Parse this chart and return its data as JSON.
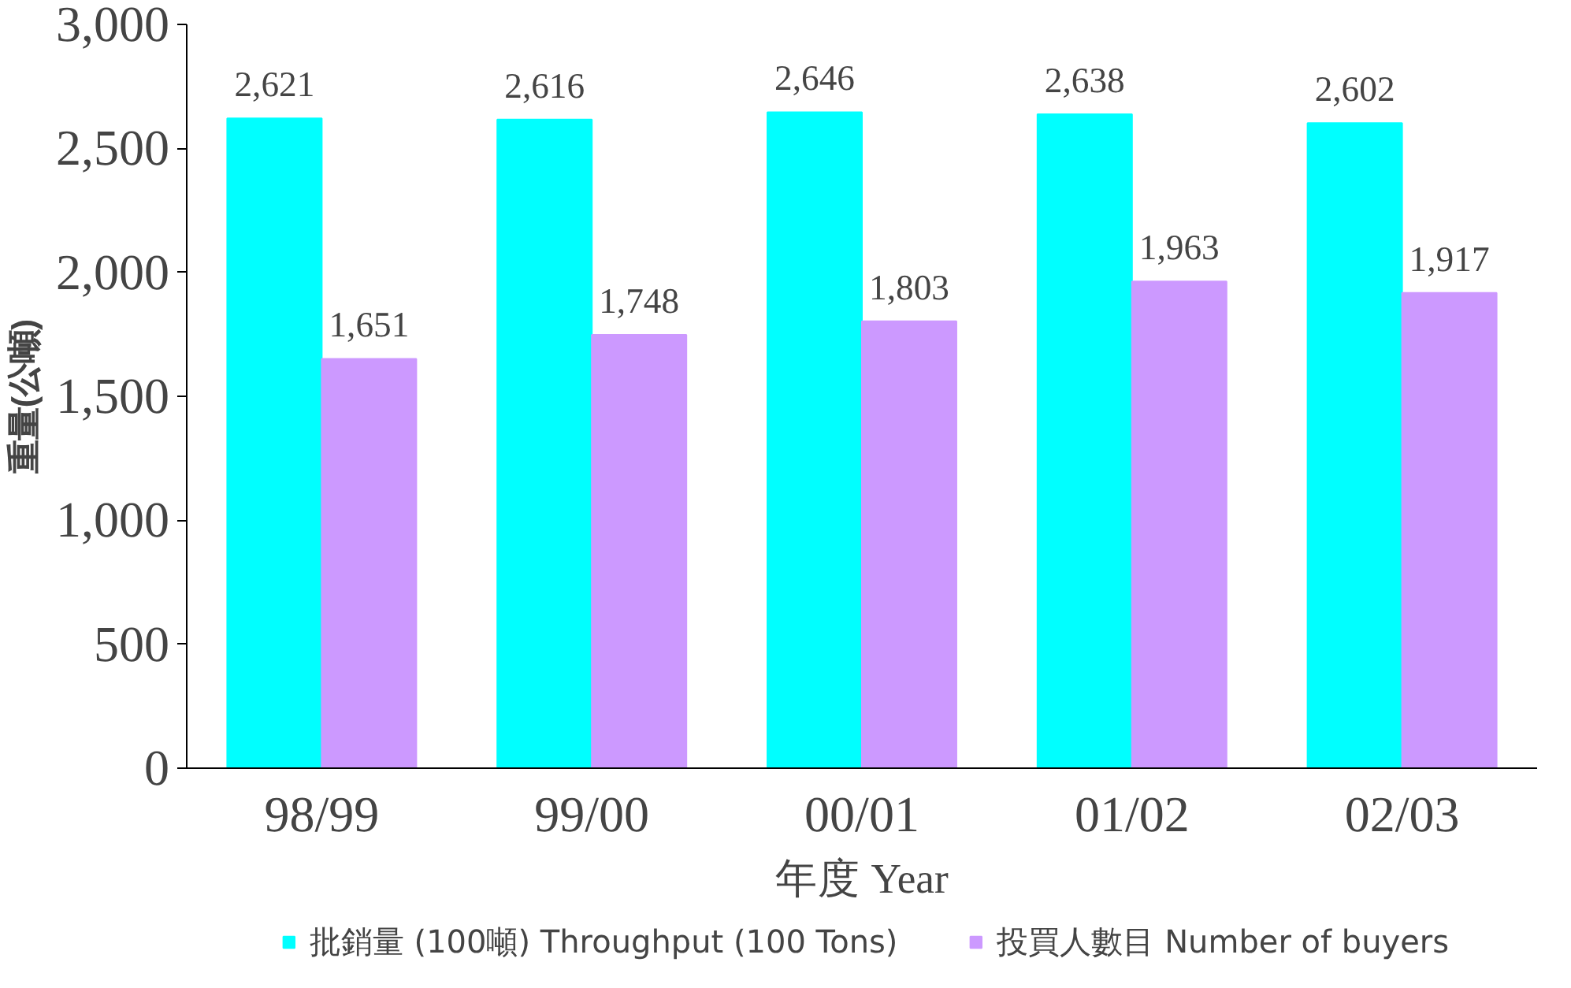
{
  "chart_data": {
    "type": "bar",
    "ylabel": "重量(公噸)",
    "xlabel": "年度 Year",
    "categories": [
      "98/99",
      "99/00",
      "00/01",
      "01/02",
      "02/03"
    ],
    "series": [
      {
        "name": "批銷量 (100噸) Throughput (100 Tons)",
        "color": "#00ffff",
        "values": [
          2621,
          2616,
          2646,
          2638,
          2602
        ],
        "value_labels": [
          "2,621",
          "2,616",
          "2,646",
          "2,638",
          "2,602"
        ]
      },
      {
        "name": "投買人數目 Number of buyers",
        "color": "#cc99ff",
        "values": [
          1651,
          1748,
          1803,
          1963,
          1917
        ],
        "value_labels": [
          "1,651",
          "1,748",
          "1,803",
          "1,963",
          "1,917"
        ]
      }
    ],
    "ylim": [
      0,
      3000
    ],
    "yticks": [
      0,
      {
        "value": 500,
        "label": "500"
      },
      {
        "value": 1000,
        "label": "1,000"
      },
      {
        "value": 1500,
        "label": "1,500"
      },
      {
        "value": 2000,
        "label": "2,000"
      },
      {
        "value": 2500,
        "label": "2,500"
      },
      {
        "value": 3000,
        "label": "3,000"
      }
    ],
    "grid": false,
    "legend": "bottom"
  }
}
